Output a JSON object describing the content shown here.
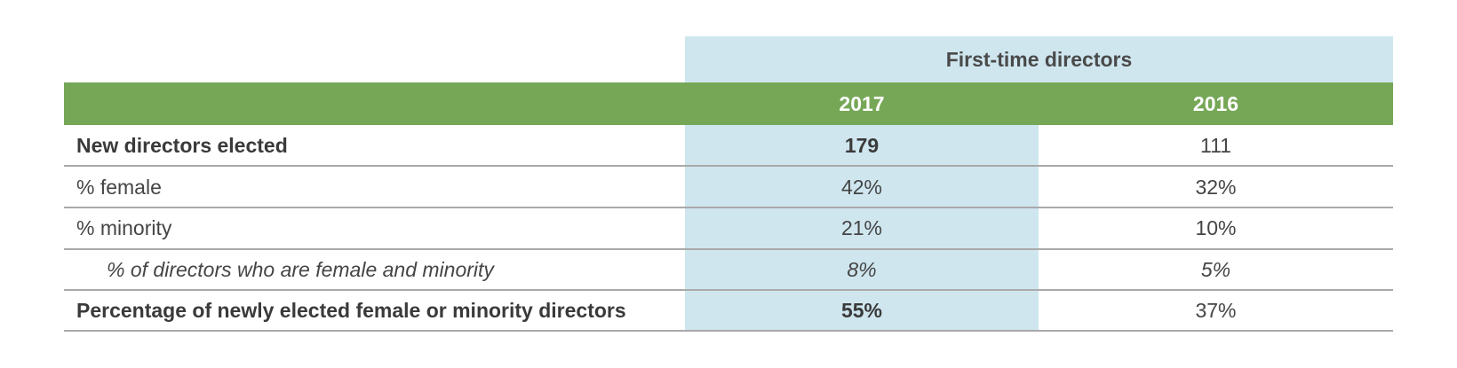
{
  "chart_data": {
    "type": "table",
    "group_header": "First-time directors",
    "columns": [
      "2017",
      "2016"
    ],
    "rows": [
      {
        "label": "New directors elected",
        "values": [
          "179",
          "111"
        ],
        "style": "bold"
      },
      {
        "label": "% female",
        "values": [
          "42%",
          "32%"
        ],
        "style": "normal"
      },
      {
        "label": "% minority",
        "values": [
          "21%",
          "10%"
        ],
        "style": "normal"
      },
      {
        "label": "% of directors who are female and minority",
        "values": [
          "8%",
          "5%"
        ],
        "style": "italic-indented"
      },
      {
        "label": "Percentage of newly elected female or minority directors",
        "values": [
          "55%",
          "37%"
        ],
        "style": "bold"
      }
    ],
    "colors": {
      "header_bar": "#76a757",
      "highlight_band": "#cfe6ef",
      "rule": "#a9a9a9"
    }
  }
}
